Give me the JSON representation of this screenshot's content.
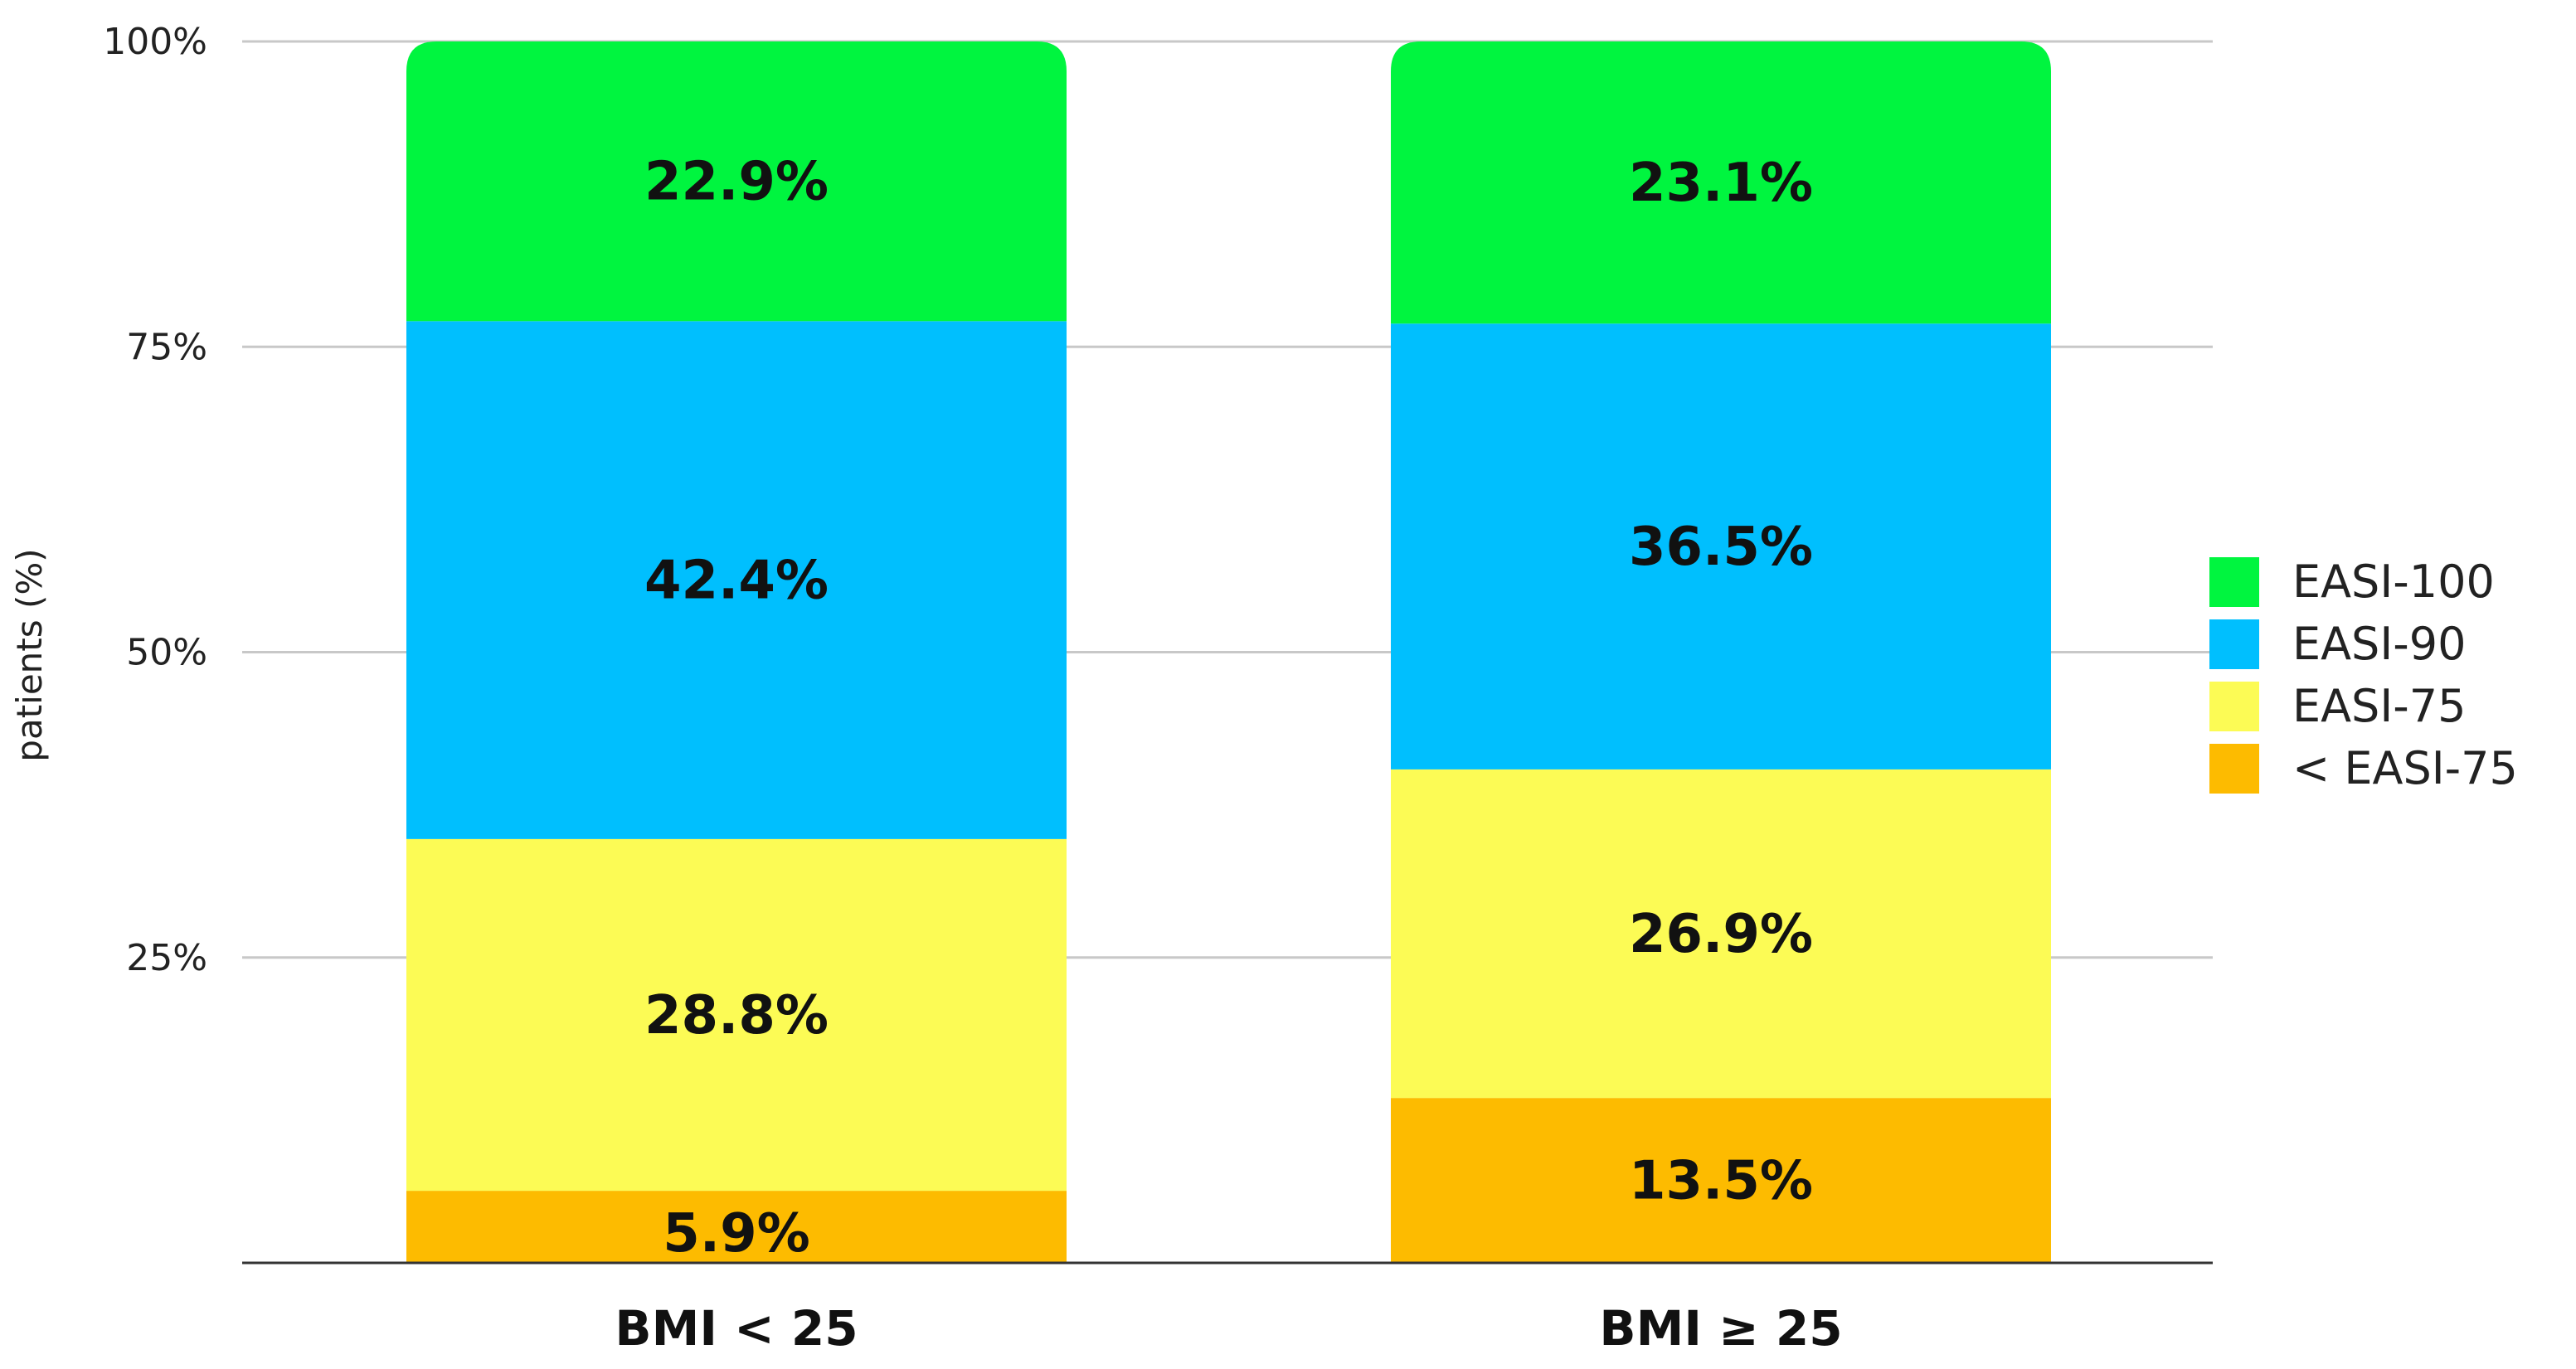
{
  "chart_data": {
    "type": "bar",
    "stacked": true,
    "ylabel": "patients (%)",
    "ylim": [
      0,
      100
    ],
    "yticks": [
      "100%",
      "75%",
      "50%",
      "25%"
    ],
    "ytick_values": [
      100,
      75,
      50,
      25
    ],
    "grid": true,
    "legend_position": "right",
    "categories": [
      "BMI < 25",
      "BMI ≥ 25"
    ],
    "series": [
      {
        "name": "< EASI-75",
        "color": "#FDBB00",
        "values": [
          5.9,
          13.5
        ],
        "labels": [
          "5.9%",
          "13.5%"
        ]
      },
      {
        "name": "EASI-75",
        "color": "#FCFB55",
        "values": [
          28.8,
          26.9
        ],
        "labels": [
          "28.8%",
          "26.9%"
        ]
      },
      {
        "name": "EASI-90",
        "color": "#00BFFE",
        "values": [
          42.4,
          36.5
        ],
        "labels": [
          "42.4%",
          "36.5%"
        ]
      },
      {
        "name": "EASI-100",
        "color": "#00F53F",
        "values": [
          22.9,
          23.1
        ],
        "labels": [
          "22.9%",
          "23.1%"
        ]
      }
    ],
    "legend_order": [
      "EASI-100",
      "EASI-90",
      "EASI-75",
      "< EASI-75"
    ]
  }
}
